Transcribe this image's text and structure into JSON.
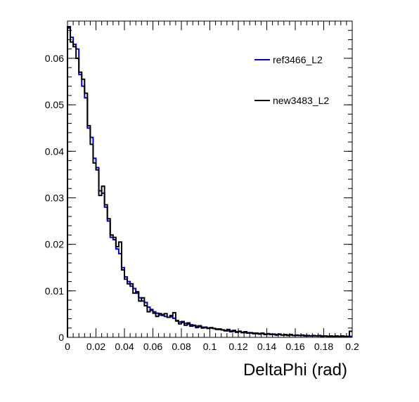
{
  "chart_data": {
    "type": "line",
    "step": true,
    "title": "",
    "xlabel": "DeltaPhi (rad)",
    "ylabel": "",
    "xlim": [
      0,
      0.2
    ],
    "ylim": [
      0,
      0.068
    ],
    "x_ticks": [
      0,
      0.02,
      0.04,
      0.06,
      0.08,
      0.1,
      0.12,
      0.14,
      0.16,
      0.18,
      0.2
    ],
    "x_tick_labels": [
      "0",
      "0.02",
      "0.04",
      "0.06",
      "0.08",
      "0.1",
      "0.12",
      "0.14",
      "0.16",
      "0.18",
      "0.2"
    ],
    "y_ticks": [
      0,
      0.01,
      0.02,
      0.03,
      0.04,
      0.05,
      0.06
    ],
    "y_tick_labels": [
      "0",
      "0.01",
      "0.02",
      "0.03",
      "0.04",
      "0.05",
      "0.06"
    ],
    "bin_width": 0.002,
    "legend_position": "top-right",
    "series": [
      {
        "name": "ref3466_L2",
        "color": "#0000cc",
        "values": [
          0.0665,
          0.0645,
          0.063,
          0.062,
          0.0565,
          0.054,
          0.0515,
          0.045,
          0.043,
          0.0385,
          0.0365,
          0.0315,
          0.031,
          0.028,
          0.025,
          0.0215,
          0.021,
          0.019,
          0.018,
          0.015,
          0.013,
          0.012,
          0.011,
          0.0105,
          0.0095,
          0.0085,
          0.0078,
          0.0075,
          0.0065,
          0.006,
          0.0055,
          0.0052,
          0.0048,
          0.0047,
          0.0045,
          0.0043,
          0.0044,
          0.0041,
          0.0035,
          0.0033,
          0.0032,
          0.003,
          0.0028,
          0.0027,
          0.0025,
          0.0024,
          0.0023,
          0.0022,
          0.0021,
          0.002,
          0.002,
          0.0019,
          0.0018,
          0.0017,
          0.0016,
          0.0015,
          0.0014,
          0.0014,
          0.0013,
          0.0012,
          0.0012,
          0.0011,
          0.001,
          0.001,
          0.0009,
          0.0009,
          0.0008,
          0.0008,
          0.0008,
          0.0007,
          0.0007,
          0.0007,
          0.0006,
          0.0006,
          0.0006,
          0.0005,
          0.0005,
          0.0005,
          0.0005,
          0.0004,
          0.0004,
          0.0004,
          0.0004,
          0.0004,
          0.0003,
          0.0003,
          0.0003,
          0.0003,
          0.0003,
          0.0003,
          0.0003,
          0.0002,
          0.0002,
          0.0002,
          0.0002,
          0.0002,
          0.0002,
          0.0002,
          0.0002,
          0.0002
        ]
      },
      {
        "name": "new3483_L2",
        "color": "#000000",
        "values": [
          0.0668,
          0.0635,
          0.0625,
          0.06,
          0.057,
          0.0555,
          0.0525,
          0.0455,
          0.0415,
          0.0375,
          0.036,
          0.0305,
          0.0325,
          0.0285,
          0.0255,
          0.022,
          0.0215,
          0.0195,
          0.0205,
          0.0145,
          0.0125,
          0.0115,
          0.0115,
          0.0095,
          0.0098,
          0.0078,
          0.0085,
          0.0068,
          0.0055,
          0.0058,
          0.0052,
          0.0045,
          0.0051,
          0.0049,
          0.0051,
          0.0043,
          0.0047,
          0.0053,
          0.0036,
          0.0029,
          0.0034,
          0.0026,
          0.0031,
          0.0024,
          0.0026,
          0.0021,
          0.0025,
          0.002,
          0.0022,
          0.0019,
          0.0021,
          0.0019,
          0.0017,
          0.0018,
          0.0016,
          0.0014,
          0.0017,
          0.0012,
          0.0015,
          0.0011,
          0.0013,
          0.001,
          0.0012,
          0.0009,
          0.001,
          0.0008,
          0.0009,
          0.0007,
          0.0009,
          0.0006,
          0.0008,
          0.0006,
          0.0007,
          0.0005,
          0.0007,
          0.0005,
          0.0006,
          0.0004,
          0.0006,
          0.0004,
          0.0005,
          0.0004,
          0.0005,
          0.0003,
          0.0004,
          0.0003,
          0.0004,
          0.0003,
          0.0004,
          0.0002,
          0.0003,
          0.0002,
          0.0003,
          0.0002,
          0.0003,
          0.0002,
          0.0003,
          0.0002,
          0.0002,
          0.0013
        ]
      }
    ]
  }
}
